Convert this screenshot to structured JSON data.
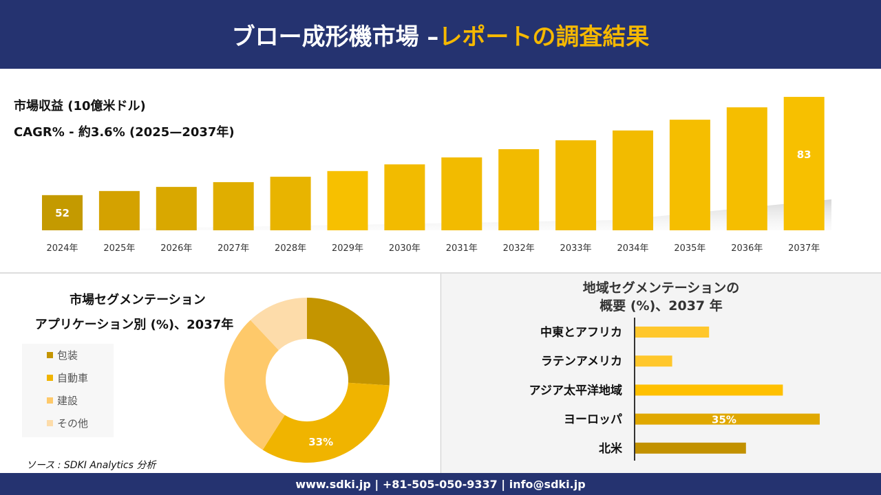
{
  "header": {
    "title_white": "ブロー成形機市場 –",
    "title_yellow": "レポートの調査結果"
  },
  "revenue": {
    "label": "市場収益 (10億米ドル)",
    "cagr": "CAGR% - 約3.6% (2025—2037年)"
  },
  "chart_data": [
    {
      "type": "bar",
      "categories": [
        "2024年",
        "2025年",
        "2026年",
        "2027年",
        "2028年",
        "2029年",
        "2030年",
        "2031年",
        "2032年",
        "2033年",
        "2034年",
        "2035年",
        "2036年",
        "2037年"
      ],
      "values": [
        52,
        53.3,
        54.6,
        56.1,
        57.8,
        59.6,
        61.7,
        63.9,
        66.5,
        69.3,
        72.4,
        75.8,
        79.7,
        83
      ],
      "data_labels": {
        "0": "52",
        "13": "83"
      },
      "ylabel": "市場収益 (10億米ドル)",
      "colors": [
        "#c49a00",
        "#d4a200",
        "#d9a800",
        "#e0ae00",
        "#e8b400",
        "#f7c000",
        "#f2bb00",
        "#f2bb00",
        "#f2bb00",
        "#f2bb00",
        "#f2bb00",
        "#f5be00",
        "#f5be00",
        "#f7c000"
      ]
    },
    {
      "type": "pie",
      "title": "市場セグメンテーション アプリケーション別 (%)、2037年",
      "labels": [
        "包装",
        "自動車",
        "建設",
        "その他"
      ],
      "values": [
        26,
        33,
        29,
        12
      ],
      "colors": [
        "#c49500",
        "#f0b400",
        "#fec96a",
        "#fddcaa"
      ],
      "data_labels": {
        "1": "33%"
      },
      "legend": "left"
    },
    {
      "type": "bar",
      "orientation": "horizontal",
      "title": "地域セグメンテーションの 概要 (%)、2037 年",
      "categories": [
        "中東とアフリカ",
        "ラテンアメリカ",
        "アジア太平洋地域",
        "ヨーロッパ",
        "北米"
      ],
      "values": [
        14,
        7,
        28,
        35,
        21
      ],
      "colors": [
        "#ffc72c",
        "#ffc72c",
        "#ffc000",
        "#e0a800",
        "#c29100"
      ],
      "data_labels": {
        "3": "35%"
      }
    }
  ],
  "segment": {
    "title1": "市場セグメンテーション",
    "title2": "アプリケーション別 (%)、2037年"
  },
  "region": {
    "title1": "地域セグメンテーションの",
    "title2": "概要 (%)、2037 年"
  },
  "source": "ソース : SDKI Analytics 分析",
  "footer": "www.sdki.jp | +81-505-050-9337 | info@sdki.jp"
}
